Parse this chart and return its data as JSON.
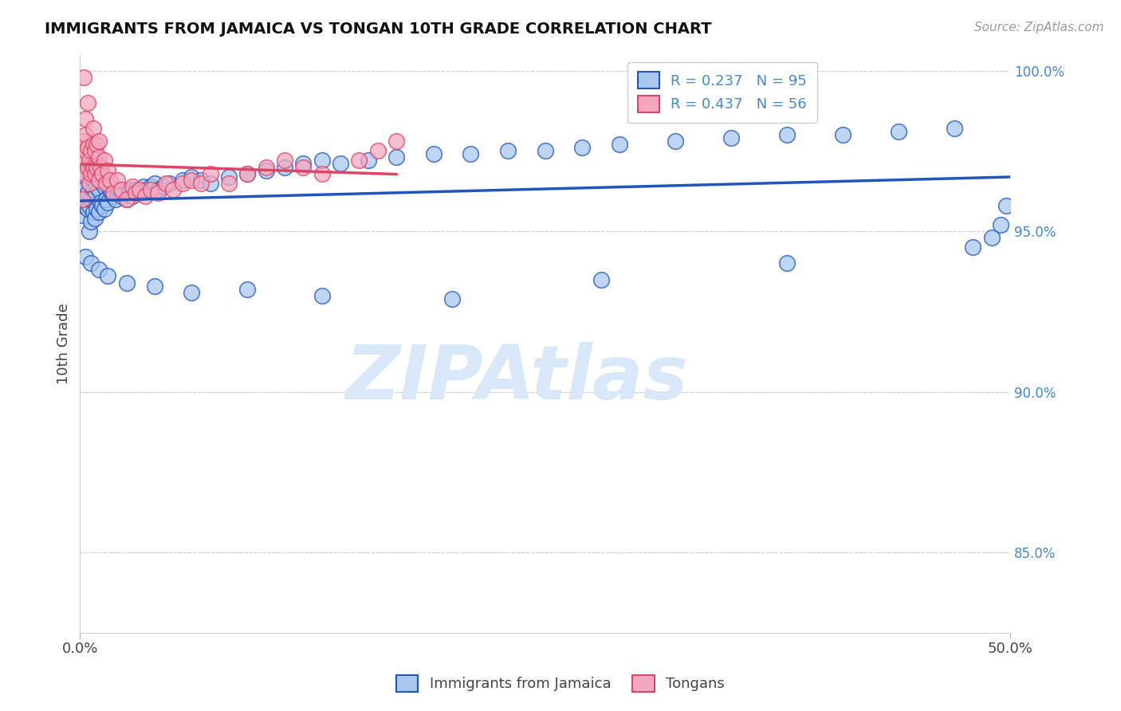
{
  "title": "IMMIGRANTS FROM JAMAICA VS TONGAN 10TH GRADE CORRELATION CHART",
  "source_text": "Source: ZipAtlas.com",
  "ylabel": "10th Grade",
  "xlim": [
    0.0,
    0.5
  ],
  "ylim": [
    0.825,
    1.005
  ],
  "xtick_labels": [
    "0.0%",
    "50.0%"
  ],
  "yticks": [
    0.85,
    0.9,
    0.95,
    1.0
  ],
  "ytick_labels": [
    "85.0%",
    "90.0%",
    "95.0%",
    "100.0%"
  ],
  "legend_r1": "R = 0.237",
  "legend_n1": "N = 95",
  "legend_r2": "R = 0.437",
  "legend_n2": "N = 56",
  "color_blue": "#A8C8F0",
  "color_pink": "#F4A8C0",
  "color_blue_line": "#2255BB",
  "color_pink_line": "#DD4466",
  "color_legend_text": "#4488CC",
  "color_ytick": "#4488CC",
  "watermark_text": "ZIPAtlas",
  "watermark_color": "#D8E8F8",
  "blue_x": [
    0.001,
    0.002,
    0.002,
    0.003,
    0.003,
    0.004,
    0.004,
    0.005,
    0.005,
    0.005,
    0.006,
    0.006,
    0.006,
    0.007,
    0.007,
    0.007,
    0.008,
    0.008,
    0.008,
    0.009,
    0.009,
    0.009,
    0.01,
    0.01,
    0.01,
    0.011,
    0.011,
    0.012,
    0.012,
    0.013,
    0.013,
    0.014,
    0.015,
    0.015,
    0.016,
    0.017,
    0.018,
    0.019,
    0.02,
    0.021,
    0.022,
    0.023,
    0.025,
    0.027,
    0.028,
    0.03,
    0.032,
    0.034,
    0.036,
    0.038,
    0.04,
    0.042,
    0.045,
    0.048,
    0.055,
    0.06,
    0.065,
    0.07,
    0.08,
    0.09,
    0.1,
    0.11,
    0.12,
    0.13,
    0.14,
    0.155,
    0.17,
    0.19,
    0.21,
    0.23,
    0.25,
    0.27,
    0.29,
    0.32,
    0.35,
    0.38,
    0.41,
    0.44,
    0.47,
    0.003,
    0.006,
    0.01,
    0.015,
    0.025,
    0.04,
    0.06,
    0.09,
    0.13,
    0.2,
    0.28,
    0.38,
    0.48,
    0.49,
    0.495,
    0.498
  ],
  "blue_y": [
    0.955,
    0.958,
    0.963,
    0.96,
    0.968,
    0.957,
    0.962,
    0.95,
    0.958,
    0.965,
    0.953,
    0.96,
    0.967,
    0.956,
    0.963,
    0.97,
    0.954,
    0.961,
    0.968,
    0.957,
    0.964,
    0.971,
    0.956,
    0.963,
    0.97,
    0.959,
    0.966,
    0.958,
    0.965,
    0.957,
    0.964,
    0.96,
    0.959,
    0.966,
    0.963,
    0.962,
    0.961,
    0.96,
    0.962,
    0.963,
    0.961,
    0.962,
    0.96,
    0.963,
    0.961,
    0.963,
    0.962,
    0.964,
    0.963,
    0.964,
    0.965,
    0.963,
    0.964,
    0.965,
    0.966,
    0.967,
    0.966,
    0.965,
    0.967,
    0.968,
    0.969,
    0.97,
    0.971,
    0.972,
    0.971,
    0.972,
    0.973,
    0.974,
    0.974,
    0.975,
    0.975,
    0.976,
    0.977,
    0.978,
    0.979,
    0.98,
    0.98,
    0.981,
    0.982,
    0.942,
    0.94,
    0.938,
    0.936,
    0.934,
    0.933,
    0.931,
    0.932,
    0.93,
    0.929,
    0.935,
    0.94,
    0.945,
    0.948,
    0.952,
    0.958
  ],
  "pink_x": [
    0.001,
    0.001,
    0.002,
    0.002,
    0.003,
    0.003,
    0.003,
    0.004,
    0.004,
    0.005,
    0.005,
    0.006,
    0.006,
    0.007,
    0.007,
    0.008,
    0.008,
    0.009,
    0.009,
    0.01,
    0.01,
    0.011,
    0.012,
    0.013,
    0.014,
    0.015,
    0.016,
    0.018,
    0.02,
    0.022,
    0.025,
    0.028,
    0.03,
    0.032,
    0.035,
    0.038,
    0.042,
    0.046,
    0.05,
    0.055,
    0.06,
    0.065,
    0.07,
    0.08,
    0.09,
    0.1,
    0.11,
    0.12,
    0.13,
    0.15,
    0.16,
    0.17,
    0.002,
    0.004,
    0.007,
    0.01
  ],
  "pink_y": [
    0.96,
    0.968,
    0.972,
    0.978,
    0.975,
    0.98,
    0.985,
    0.97,
    0.976,
    0.965,
    0.972,
    0.968,
    0.975,
    0.97,
    0.977,
    0.968,
    0.975,
    0.97,
    0.977,
    0.966,
    0.973,
    0.97,
    0.968,
    0.972,
    0.965,
    0.969,
    0.966,
    0.962,
    0.966,
    0.963,
    0.96,
    0.964,
    0.962,
    0.963,
    0.961,
    0.963,
    0.962,
    0.965,
    0.963,
    0.965,
    0.966,
    0.965,
    0.968,
    0.965,
    0.968,
    0.97,
    0.972,
    0.97,
    0.968,
    0.972,
    0.975,
    0.978,
    0.998,
    0.99,
    0.982,
    0.978
  ]
}
